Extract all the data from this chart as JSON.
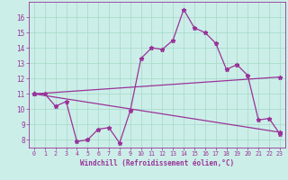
{
  "background_color": "#cceee8",
  "grid_color": "#aaddcc",
  "line_color": "#993399",
  "xlabel": "Windchill (Refroidissement éolien,°C)",
  "xlim": [
    -0.5,
    23.5
  ],
  "ylim": [
    7.5,
    17.0
  ],
  "yticks": [
    8,
    9,
    10,
    11,
    12,
    13,
    14,
    15,
    16
  ],
  "xticks": [
    0,
    1,
    2,
    3,
    4,
    5,
    6,
    7,
    8,
    9,
    10,
    11,
    12,
    13,
    14,
    15,
    16,
    17,
    18,
    19,
    20,
    21,
    22,
    23
  ],
  "series1_x": [
    0,
    1,
    2,
    3,
    4,
    5,
    6,
    7,
    8,
    9,
    10,
    11,
    12,
    13,
    14,
    15,
    16,
    17,
    18,
    19,
    20,
    21,
    22,
    23
  ],
  "series1_y": [
    11.0,
    11.0,
    10.2,
    10.5,
    7.9,
    8.0,
    8.7,
    8.8,
    7.8,
    9.9,
    13.3,
    14.0,
    13.9,
    14.5,
    16.5,
    15.3,
    15.0,
    14.3,
    12.6,
    12.9,
    12.2,
    9.3,
    9.4,
    8.4
  ],
  "series2_x": [
    0,
    23
  ],
  "series2_y": [
    11.0,
    12.1
  ],
  "series3_x": [
    0,
    23
  ],
  "series3_y": [
    11.0,
    8.5
  ],
  "marker": "*",
  "markersize": 3.5,
  "linewidth": 0.9
}
